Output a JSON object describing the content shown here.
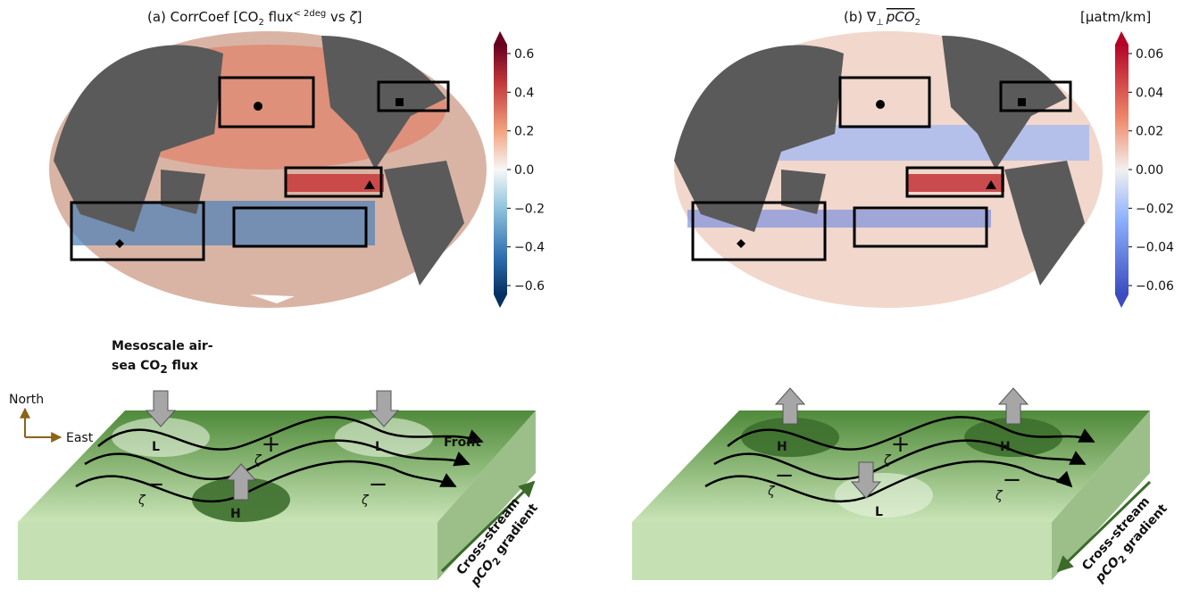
{
  "panel_a": {
    "title": [
      "(a) CorrCoef [CO",
      "2",
      " flux",
      "< 2deg",
      " vs ",
      "ζ",
      "]"
    ],
    "colorbar_ticks": [
      "0.6",
      "0.4",
      "0.2",
      "0.0",
      "−0.2",
      "−0.4",
      "−0.6"
    ]
  },
  "panel_b": {
    "title": [
      "(b) ∇",
      "⊥",
      "pCO",
      "2"
    ],
    "units": "[μatm/km]",
    "colorbar_ticks": [
      "0.06",
      "0.04",
      "0.02",
      "0.00",
      "−0.02",
      "−0.04",
      "−0.06"
    ]
  },
  "panel_c": {
    "flux_label": [
      "Mesoscale air-",
      "sea CO",
      "2",
      " flux"
    ],
    "north": "North",
    "east": "East",
    "low": "L",
    "high": "H",
    "zeta": "ζ",
    "plus": "+",
    "minus": "−",
    "front": "Front",
    "gradient": [
      "Cross-stream",
      "pCO",
      "2",
      " gradient"
    ]
  },
  "panel_d": {
    "low": "L",
    "high": "H",
    "zeta": "ζ",
    "plus": "+",
    "minus": "−",
    "gradient": [
      "Cross-stream",
      "pCO",
      "2",
      " gradient"
    ]
  }
}
